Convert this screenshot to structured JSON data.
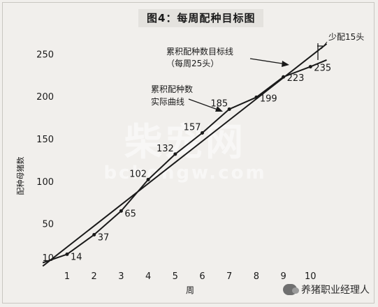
{
  "title": "图4：每周配种目标图",
  "watermark": {
    "line1": "柴宠网",
    "line2": "bchongw.com"
  },
  "brand": {
    "text": "养猪职业经理人",
    "icon": "wechat-icon"
  },
  "chart_data": {
    "type": "line",
    "title": "图4：每周配种目标图",
    "xlabel": "周",
    "ylabel": "配种母猪数",
    "x_ticks": [
      1,
      2,
      3,
      4,
      5,
      6,
      7,
      8,
      9,
      10
    ],
    "y_ticks": [
      10,
      50,
      100,
      150,
      200,
      250
    ],
    "xlim": [
      0.1,
      10.6
    ],
    "ylim": [
      0,
      268
    ],
    "grid": false,
    "legend": "none",
    "series": [
      {
        "name": "累积配种数目标线（每周25头）",
        "color": "#1a1a1a",
        "points": [
          [
            0.1,
            0
          ],
          [
            10.6,
            262
          ]
        ]
      },
      {
        "name": "累积配种数实际曲线",
        "color": "#1a1a1a",
        "points": [
          [
            0.1,
            4
          ],
          [
            1,
            14
          ],
          [
            2,
            37
          ],
          [
            3,
            65
          ],
          [
            4,
            102
          ],
          [
            5,
            132
          ],
          [
            6,
            157
          ],
          [
            7,
            185
          ],
          [
            8,
            199
          ],
          [
            9,
            223
          ],
          [
            10,
            235
          ],
          [
            10.6,
            243
          ]
        ],
        "labels": [
          {
            "x": 1,
            "y": 14,
            "text": "14"
          },
          {
            "x": 2,
            "y": 37,
            "text": "37"
          },
          {
            "x": 3,
            "y": 65,
            "text": "65"
          },
          {
            "x": 4,
            "y": 102,
            "text": "102"
          },
          {
            "x": 5,
            "y": 132,
            "text": "132"
          },
          {
            "x": 6,
            "y": 157,
            "text": "157"
          },
          {
            "x": 7,
            "y": 185,
            "text": "185"
          },
          {
            "x": 8,
            "y": 199,
            "text": "199"
          },
          {
            "x": 9,
            "y": 223,
            "text": "223"
          },
          {
            "x": 10,
            "y": 235,
            "text": "235"
          }
        ]
      }
    ],
    "annotations": [
      {
        "id": "target",
        "lines": [
          "累积配种数目标线",
          "（每周25头）"
        ]
      },
      {
        "id": "actual",
        "lines": [
          "累积配种数",
          "实际曲线"
        ]
      },
      {
        "id": "shortfall",
        "lines": [
          "少配15头"
        ]
      }
    ]
  }
}
